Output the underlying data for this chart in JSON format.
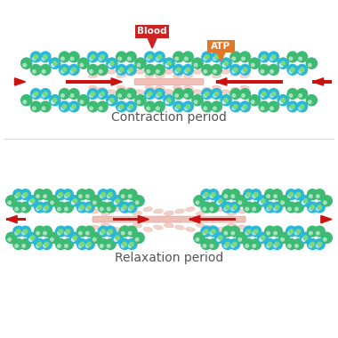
{
  "title_top": "Contraction period",
  "title_bottom": "Relaxation period",
  "bg_color": "#ffffff",
  "text_color": "#555555",
  "title_fontsize": 10,
  "blood_label": "Blood",
  "atp_label": "ATP",
  "blood_color": "#cc2222",
  "atp_color": "#e07828",
  "arrow_color": "#cc1111",
  "actin_blue": "#2ab8d8",
  "actin_green": "#3dbb72",
  "actin_green_light": "#7dd87a",
  "myosin_head_color": "#f2cfc8",
  "myosin_head_edge": "#e8b0a8",
  "center_bar_color": "#f0c0b8",
  "center_bar_edge": "#e0a090"
}
